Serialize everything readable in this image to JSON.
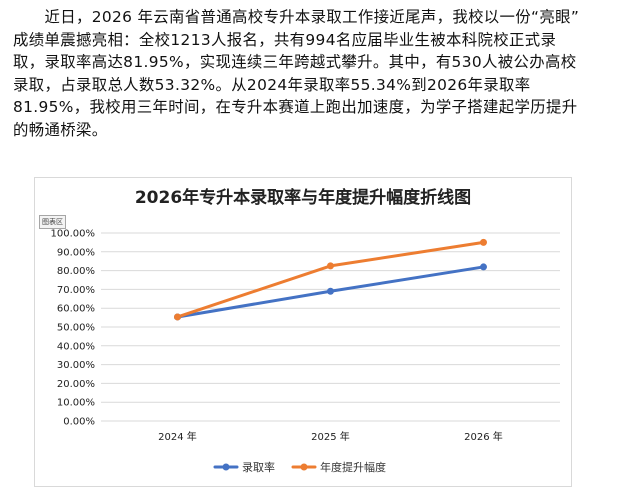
{
  "article": {
    "lines": [
      "　　近日，2026 年云南省普通高校专升本录取工作接近尾声，我校以一份“亮眼”",
      "成绩单震撼亮相：全校1213人报名，共有994名应届毕业生被本科院校正式录",
      "取，录取率高达81.95%，实现连续三年跨越式攀升。其中，有530人被公办高校",
      "录取，占录取总人数53.32%。从2024年录取率55.34%到2026年录取率",
      "81.95%，我校用三年时间，在专升本赛道上跑出加速度，为学子搭建起学历提升",
      "的畅通桥梁。"
    ]
  },
  "chart_tag": "图表区",
  "chart_data": {
    "type": "line",
    "title": "2026年专升本录取率与年度提升幅度折线图",
    "xlabel": "",
    "ylabel": "",
    "categories": [
      "2024 年",
      "2025 年",
      "2026 年"
    ],
    "ylim": [
      0,
      100
    ],
    "yticks": [
      0,
      10,
      20,
      30,
      40,
      50,
      60,
      70,
      80,
      90,
      100
    ],
    "ytick_labels": [
      "0.00%",
      "10.00%",
      "20.00%",
      "30.00%",
      "40.00%",
      "50.00%",
      "60.00%",
      "70.00%",
      "80.00%",
      "90.00%",
      "100.00%"
    ],
    "grid": true,
    "legend": "bottom",
    "series": [
      {
        "name": "录取率",
        "values": [
          55.34,
          69.0,
          81.95
        ],
        "color": "#4472C4"
      },
      {
        "name": "年度提升幅度",
        "values": [
          55.34,
          82.5,
          95.0
        ],
        "color": "#ED7D31"
      }
    ]
  }
}
